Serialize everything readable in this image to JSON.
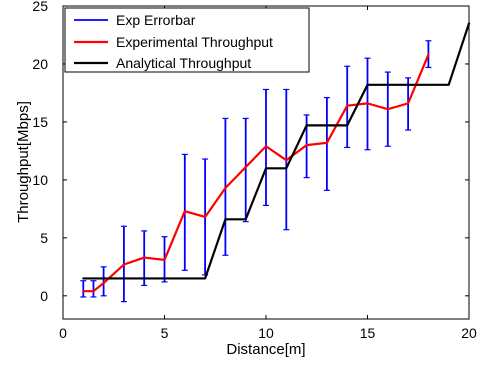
{
  "chart_data": {
    "type": "line",
    "title": "",
    "xlabel": "Distance[m]",
    "ylabel": "Throughput[Mbps]",
    "xlim": [
      0,
      20
    ],
    "ylim": [
      -2,
      25
    ],
    "grid": false,
    "legend_position": "top-left",
    "x_ticks": [
      0,
      5,
      10,
      15,
      20
    ],
    "y_ticks": [
      0,
      5,
      10,
      15,
      20,
      25
    ],
    "series": [
      {
        "name": "Exp Errorbar",
        "kind": "errorbar",
        "color": "#0000ff",
        "x": [
          1,
          1.5,
          2,
          3,
          4,
          5,
          6,
          7,
          8,
          9,
          10,
          11,
          12,
          13,
          14,
          15,
          16,
          17,
          18
        ],
        "lower": [
          -0.1,
          -0.1,
          0.0,
          -0.5,
          0.9,
          1.2,
          2.2,
          1.8,
          3.5,
          6.4,
          7.8,
          5.7,
          10.2,
          9.1,
          12.8,
          12.6,
          12.9,
          14.3,
          19.7
        ],
        "upper": [
          1.3,
          1.3,
          2.5,
          6.0,
          5.6,
          5.1,
          12.2,
          11.8,
          15.3,
          15.3,
          17.8,
          17.8,
          15.6,
          17.1,
          19.8,
          20.5,
          19.3,
          18.8,
          22.0
        ]
      },
      {
        "name": "Experimental Throughput",
        "kind": "line",
        "color": "#ff0000",
        "x": [
          1,
          1.5,
          2,
          3,
          4,
          5,
          6,
          7,
          8,
          9,
          10,
          11,
          12,
          13,
          14,
          15,
          16,
          17,
          18
        ],
        "y": [
          0.4,
          0.4,
          1.1,
          2.7,
          3.3,
          3.1,
          7.3,
          6.8,
          9.3,
          11.1,
          12.9,
          11.7,
          13.0,
          13.2,
          16.4,
          16.6,
          16.1,
          16.6,
          20.8
        ]
      },
      {
        "name": "Analytical Throughput",
        "kind": "line",
        "color": "#000000",
        "x": [
          1,
          7,
          8,
          9,
          10,
          11,
          12,
          14,
          15,
          19,
          20
        ],
        "y": [
          1.5,
          1.5,
          6.6,
          6.6,
          11.0,
          11.0,
          14.7,
          14.7,
          18.2,
          18.2,
          23.5
        ]
      }
    ]
  }
}
